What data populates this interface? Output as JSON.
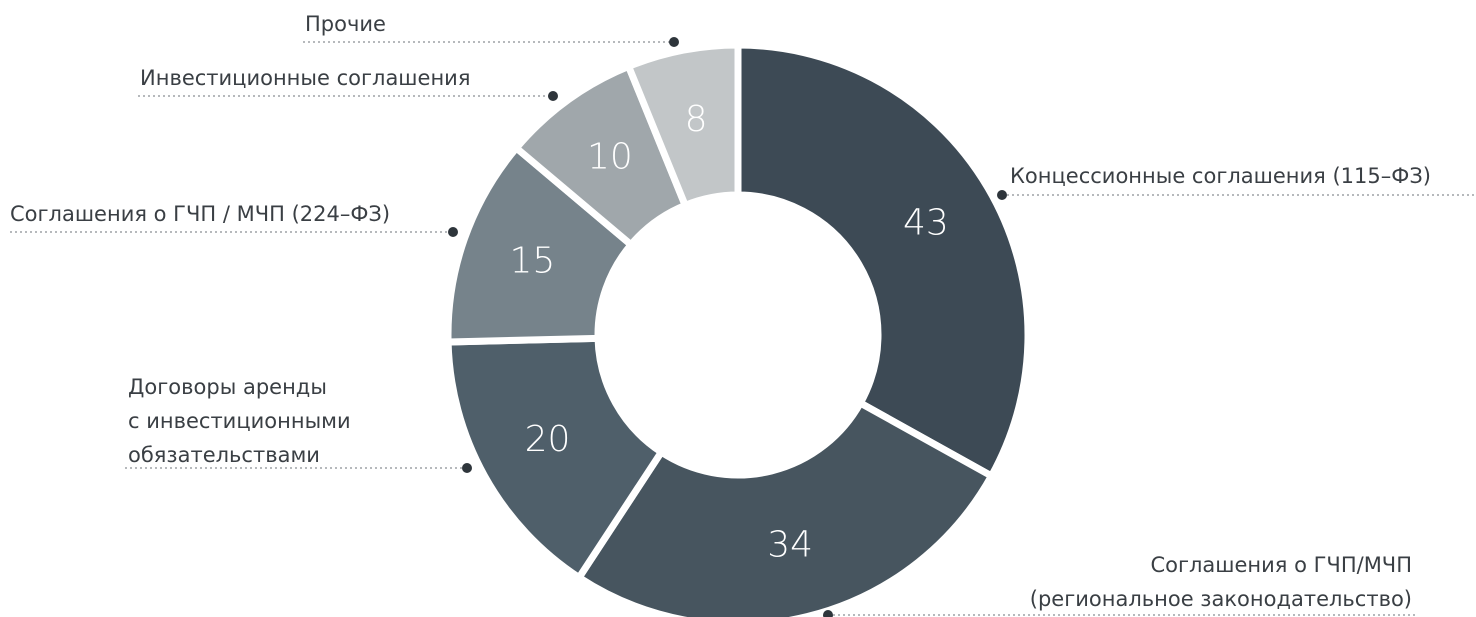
{
  "chart_data": {
    "type": "donut",
    "categories": [
      "Концессионные соглашения (115–ФЗ)",
      [
        "Соглашения о ГЧП/МЧП",
        "(региональное законодательство)"
      ],
      [
        "Договоры аренды",
        "с инвестиционными",
        "обязательствами"
      ],
      "Соглашения о ГЧП / МЧП (224–ФЗ)",
      "Инвестиционные соглашения",
      "Прочие"
    ],
    "values": [
      43,
      34,
      20,
      15,
      10,
      8
    ],
    "colors": [
      "#3d4a55",
      "#47555f",
      "#4f5f6a",
      "#76838b",
      "#a0a7ab",
      "#c2c6c8"
    ]
  }
}
